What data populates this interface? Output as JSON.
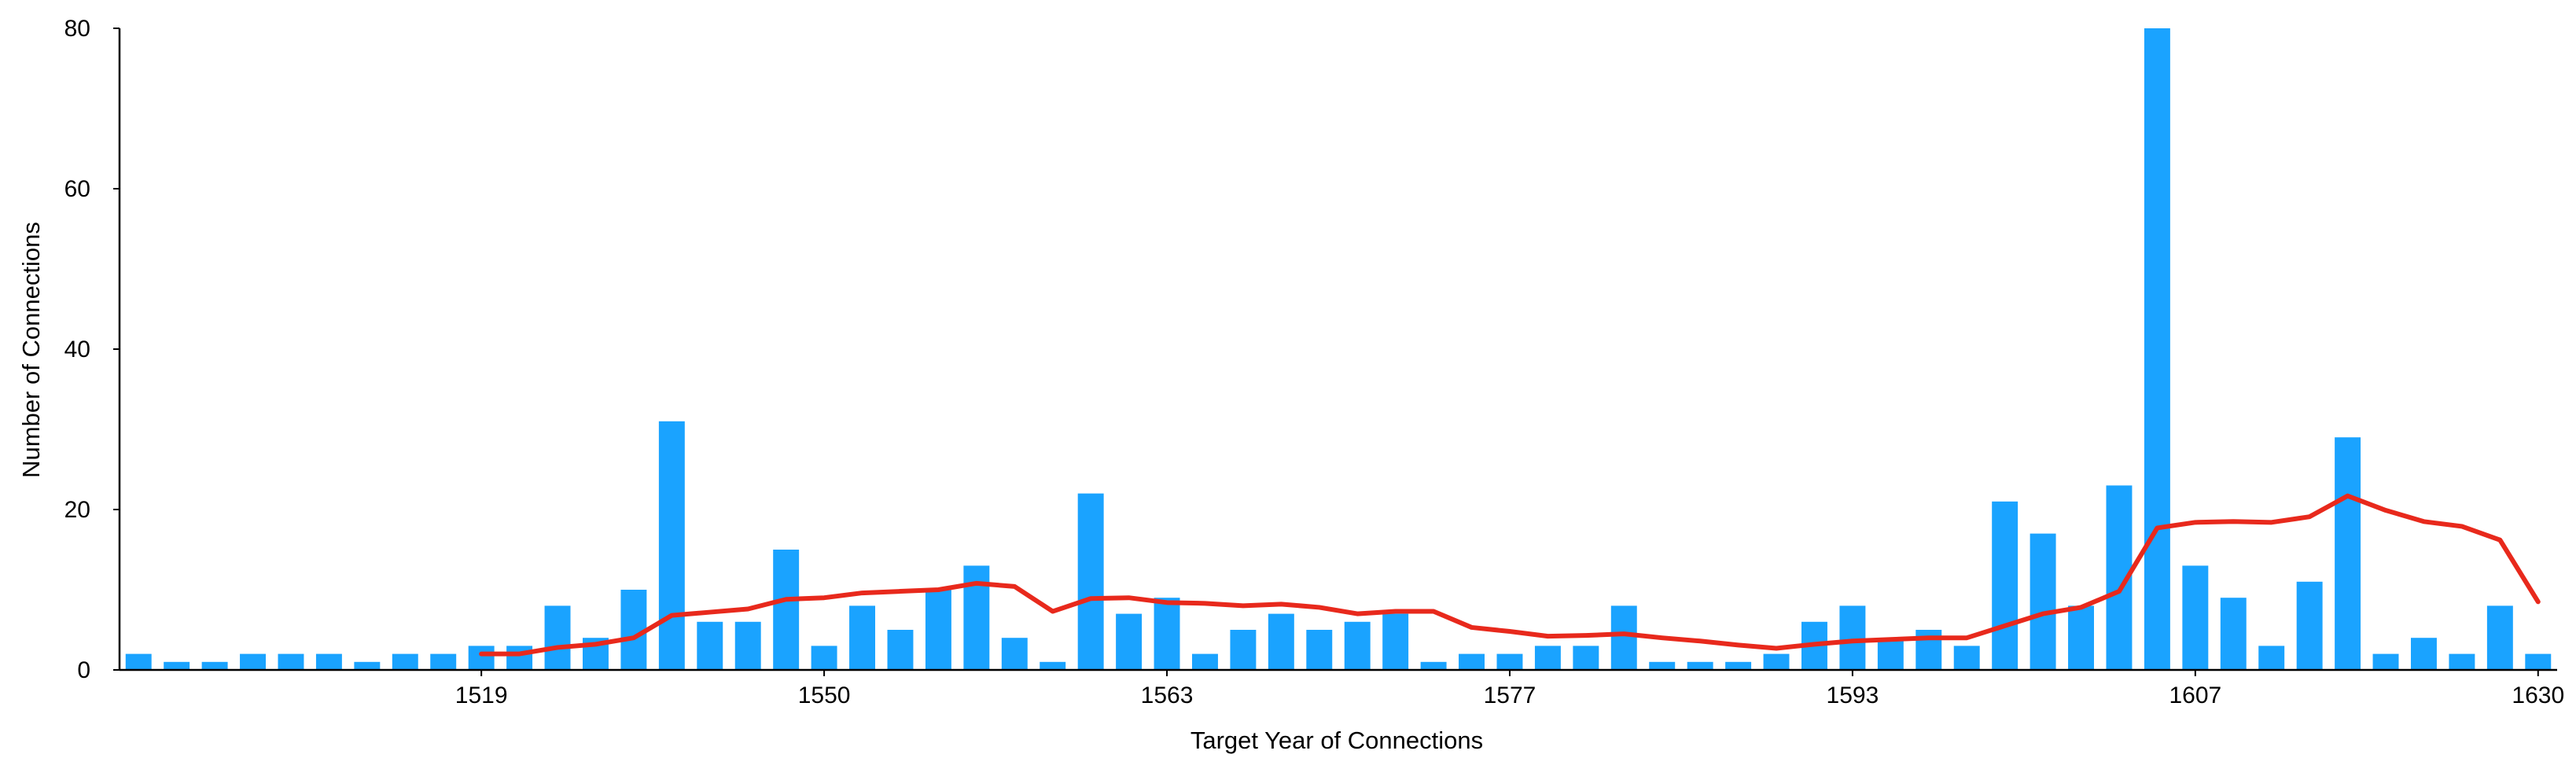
{
  "chart_data": {
    "type": "bar",
    "title": "",
    "xlabel": "Target Year of Connections",
    "ylabel": "Number of Connections",
    "ylim": [
      0,
      80
    ],
    "yticks": [
      0,
      20,
      40,
      60,
      80
    ],
    "xtick_labels": [
      {
        "index": 9,
        "label": "1519"
      },
      {
        "index": 18,
        "label": "1550"
      },
      {
        "index": 27,
        "label": "1563"
      },
      {
        "index": 36,
        "label": "1577"
      },
      {
        "index": 45,
        "label": "1593"
      },
      {
        "index": 54,
        "label": "1607"
      },
      {
        "index": 63,
        "label": "1630"
      }
    ],
    "grid": false,
    "colors": {
      "bars": "#1aa3ff",
      "trend": "#e8291c",
      "axis": "#000000"
    },
    "values": [
      2,
      1,
      1,
      2,
      2,
      2,
      1,
      2,
      2,
      3,
      3,
      8,
      4,
      10,
      31,
      6,
      6,
      15,
      3,
      8,
      5,
      10,
      13,
      4,
      1,
      22,
      7,
      9,
      2,
      5,
      7,
      5,
      6,
      7,
      1,
      2,
      2,
      3,
      3,
      8,
      1,
      1,
      1,
      2,
      6,
      8,
      4,
      5,
      3,
      21,
      17,
      8,
      23,
      80,
      13,
      9,
      3,
      11,
      29,
      2,
      4,
      2,
      8,
      2
    ],
    "series": [
      {
        "type": "line",
        "start_index": 9,
        "values": [
          2,
          2,
          2.8,
          3.2,
          4,
          6.8,
          7.2,
          7.6,
          8.8,
          9,
          9.6,
          9.8,
          10,
          10.8,
          10.4,
          7.3,
          8.9,
          9,
          8.4,
          8.3,
          8,
          8.2,
          7.8,
          7,
          7.3,
          7.3,
          5.3,
          4.8,
          4.2,
          4.3,
          4.5,
          4,
          3.6,
          3.1,
          2.7,
          3.2,
          3.6,
          3.8,
          4,
          4,
          5.5,
          7,
          7.8,
          9.8,
          17.7,
          18.4,
          18.5,
          18.4,
          19.1,
          21.7,
          19.9,
          18.5,
          17.9,
          16.2,
          8.5
        ]
      }
    ]
  }
}
